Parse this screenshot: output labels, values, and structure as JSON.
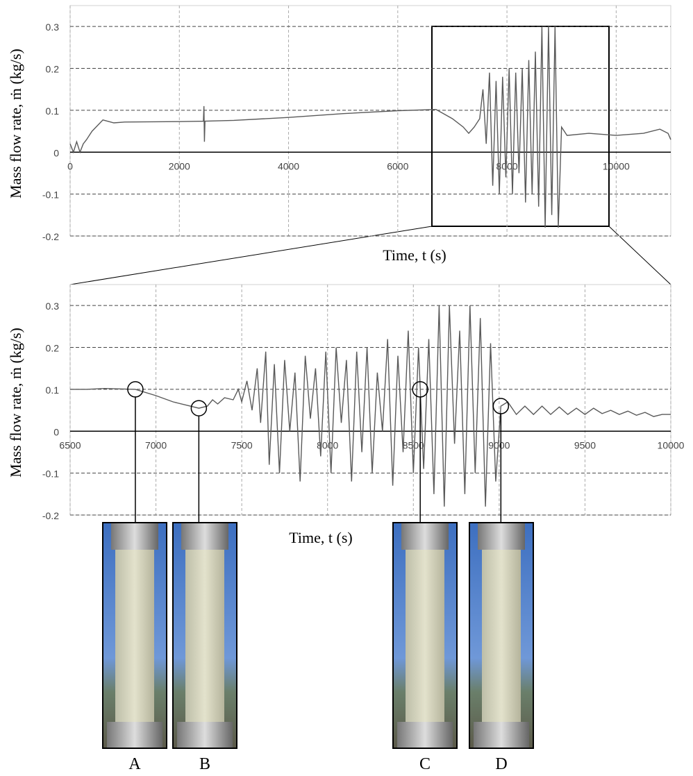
{
  "chart_data": [
    {
      "type": "line",
      "color": "#595959",
      "grid": true,
      "xlabel": "Time, t (s)",
      "ylabel": "Mass flow rate, ṁ (kg/s)",
      "xlim": [
        0,
        11000
      ],
      "ylim": [
        -0.2,
        0.35
      ],
      "xticks": [
        0,
        2000,
        4000,
        6000,
        8000,
        10000
      ],
      "yticks": [
        0.3,
        0.2,
        0.1,
        0,
        -0.1,
        -0.2
      ],
      "x": [
        0,
        60,
        120,
        180,
        240,
        300,
        400,
        600,
        800,
        1000,
        2000,
        2440,
        2450,
        2460,
        2470,
        3000,
        4000,
        5000,
        6000,
        6700,
        7000,
        7200,
        7300,
        7400,
        7500,
        7560,
        7620,
        7680,
        7740,
        7800,
        7860,
        7920,
        7980,
        8040,
        8100,
        8160,
        8220,
        8280,
        8340,
        8400,
        8460,
        8520,
        8580,
        8640,
        8700,
        8760,
        8820,
        8880,
        8940,
        9000,
        9100,
        9500,
        10000,
        10500,
        10800,
        10950,
        11000
      ],
      "values": [
        0.02,
        0.0,
        0.025,
        0.0,
        0.02,
        0.03,
        0.05,
        0.077,
        0.07,
        0.072,
        0.073,
        0.074,
        0.11,
        0.025,
        0.074,
        0.076,
        0.083,
        0.092,
        0.099,
        0.102,
        0.08,
        0.06,
        0.045,
        0.06,
        0.08,
        0.15,
        0.02,
        0.19,
        -0.08,
        0.17,
        -0.1,
        0.18,
        -0.06,
        0.2,
        -0.1,
        0.19,
        -0.05,
        0.2,
        -0.12,
        0.22,
        -0.1,
        0.24,
        -0.13,
        0.3,
        -0.18,
        0.3,
        -0.15,
        0.3,
        -0.18,
        0.06,
        0.04,
        0.045,
        0.04,
        0.045,
        0.055,
        0.045,
        0.03
      ]
    },
    {
      "type": "line",
      "color": "#595959",
      "grid": true,
      "xlabel": "Time, t (s)",
      "ylabel": "Mass flow rate, ṁ (kg/s)",
      "xlim": [
        6500,
        10000
      ],
      "ylim": [
        -0.2,
        0.35
      ],
      "xticks": [
        6500,
        7000,
        7500,
        8000,
        8500,
        9000,
        9500,
        10000
      ],
      "yticks": [
        0.3,
        0.2,
        0.1,
        0,
        -0.1,
        -0.2
      ],
      "x": [
        6500,
        6600,
        6700,
        6880,
        7000,
        7100,
        7200,
        7250,
        7300,
        7330,
        7360,
        7400,
        7450,
        7480,
        7500,
        7530,
        7560,
        7590,
        7610,
        7640,
        7660,
        7690,
        7720,
        7750,
        7780,
        7810,
        7840,
        7870,
        7900,
        7930,
        7960,
        7990,
        8020,
        8050,
        8080,
        8110,
        8140,
        8170,
        8200,
        8230,
        8260,
        8290,
        8320,
        8350,
        8380,
        8410,
        8440,
        8470,
        8500,
        8530,
        8560,
        8590,
        8620,
        8650,
        8680,
        8710,
        8740,
        8770,
        8800,
        8830,
        8860,
        8890,
        8920,
        8950,
        8980,
        9010,
        9050,
        9100,
        9150,
        9200,
        9250,
        9300,
        9350,
        9400,
        9450,
        9500,
        9550,
        9600,
        9650,
        9700,
        9750,
        9800,
        9850,
        9900,
        9950,
        10000
      ],
      "values": [
        0.1,
        0.1,
        0.102,
        0.1,
        0.085,
        0.07,
        0.06,
        0.055,
        0.06,
        0.075,
        0.065,
        0.08,
        0.075,
        0.1,
        0.07,
        0.12,
        0.05,
        0.15,
        0.02,
        0.19,
        -0.08,
        0.16,
        -0.1,
        0.17,
        0.0,
        0.14,
        -0.12,
        0.18,
        0.03,
        0.15,
        -0.06,
        0.19,
        -0.1,
        0.2,
        0.02,
        0.17,
        -0.12,
        0.19,
        -0.05,
        0.2,
        -0.1,
        0.14,
        0.0,
        0.22,
        -0.13,
        0.18,
        -0.05,
        0.24,
        -0.1,
        0.2,
        -0.09,
        0.22,
        -0.15,
        0.3,
        -0.18,
        0.3,
        -0.03,
        0.24,
        -0.15,
        0.3,
        -0.1,
        0.27,
        -0.18,
        0.21,
        -0.12,
        0.06,
        0.07,
        0.04,
        0.06,
        0.04,
        0.06,
        0.04,
        0.058,
        0.04,
        0.055,
        0.04,
        0.055,
        0.042,
        0.05,
        0.04,
        0.048,
        0.038,
        0.045,
        0.035,
        0.04,
        0.04
      ],
      "markers": [
        {
          "label": "A",
          "x": 6880,
          "y": 0.1
        },
        {
          "label": "B",
          "x": 7250,
          "y": 0.055
        },
        {
          "label": "C",
          "x": 8540,
          "y": 0.1
        },
        {
          "label": "D",
          "x": 9010,
          "y": 0.06
        }
      ]
    }
  ]
}
